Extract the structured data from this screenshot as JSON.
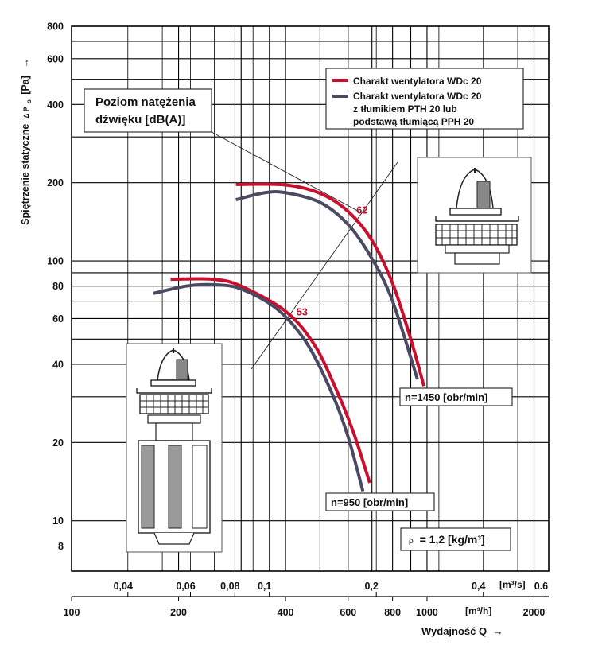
{
  "chart_data": {
    "type": "line",
    "ylabel": "Spiętrzenie statyczne",
    "ylabel_symbol": "∆ P",
    "ylabel_sub": "s",
    "ylabel_unit": "[Pa]",
    "ylabel_arrow": "→",
    "xlabel": "Wydajność Q",
    "xlabel_arrow": "→",
    "x_scale": "log",
    "y_scale": "log",
    "xlim_m3h": [
      100,
      2200
    ],
    "ylim_pa": [
      6.4,
      800
    ],
    "y_ticks": [
      "800",
      "600",
      "400",
      "200",
      "100",
      "80",
      "60",
      "40",
      "20",
      "10",
      "8"
    ],
    "x_ticks_m3s": [
      "0,04",
      "0,06",
      "0,08",
      "0,1",
      "0,2",
      "0,4",
      "0.6"
    ],
    "x_ticks_m3h": [
      "100",
      "200",
      "400",
      "600",
      "800",
      "1000",
      "2000"
    ],
    "x_unit_m3s": "[m³/s]",
    "x_unit_m3h": "[m³/h]",
    "grid": true,
    "legend": {
      "items": [
        {
          "text": "Charakt wentylatora WDc 20",
          "color": "#c8102e"
        },
        {
          "text_lines": [
            "Charakt wentylatora WDc 20",
            "z tłumikiem PTH 20 lub",
            "podstawą tłumiącą PPH 20"
          ],
          "color": "#4a4a63"
        }
      ],
      "position": "top-right"
    },
    "series": [
      {
        "name": "Charakt wentylatora WDc 20",
        "speed": "n=1450 [obr/min]",
        "color": "#c8102e",
        "x": [
          290,
          400,
          500,
          600,
          700,
          800,
          900,
          980
        ],
        "y": [
          197,
          196,
          182,
          155,
          120,
          82,
          50,
          33
        ]
      },
      {
        "name": "Charakt wentylatora WDc 20 z tłumikiem PTH 20 lub podstawą tłumiącą PPH 20",
        "speed": "n=1450 [obr/min]",
        "color": "#4a4a63",
        "x": [
          290,
          350,
          400,
          500,
          600,
          700,
          800,
          940
        ],
        "y": [
          172,
          183,
          183,
          168,
          138,
          102,
          70,
          35
        ]
      },
      {
        "name": "Charakt wentylatora WDc 20",
        "speed": "n=950 [obr/min]",
        "color": "#c8102e",
        "x": [
          190,
          250,
          300,
          400,
          480,
          550,
          620,
          690
        ],
        "y": [
          85,
          85,
          80,
          64,
          48,
          33,
          22,
          14
        ]
      },
      {
        "name": "Charakt wentylatora WDc 20 z tłumikiem PTH 20 lub podstawą tłumiącą PPH 20",
        "speed": "n=950 [obr/min]",
        "color": "#4a4a63",
        "x": [
          170,
          210,
          250,
          300,
          380,
          460,
          540,
          600,
          660
        ],
        "y": [
          75,
          80,
          81,
          78,
          65,
          48,
          31,
          21,
          13
        ]
      }
    ],
    "sound_label": {
      "lines": [
        "Poziom natężenia",
        "dźwięku [dB(A)]"
      ]
    },
    "sound_levels": [
      {
        "value": "62",
        "x": 620,
        "y": 148
      },
      {
        "value": "53",
        "x": 420,
        "y": 60
      }
    ],
    "speed_labels": [
      "n=1450 [obr/min]",
      "n=950 [obr/min]"
    ],
    "density": {
      "symbol": "ρ",
      "text": "= 1,2 [kg/m³]"
    }
  },
  "images": {
    "fan_top_icon": "roof-fan-icon",
    "fan_with_silencer_icon": "roof-fan-with-silencer-icon"
  }
}
